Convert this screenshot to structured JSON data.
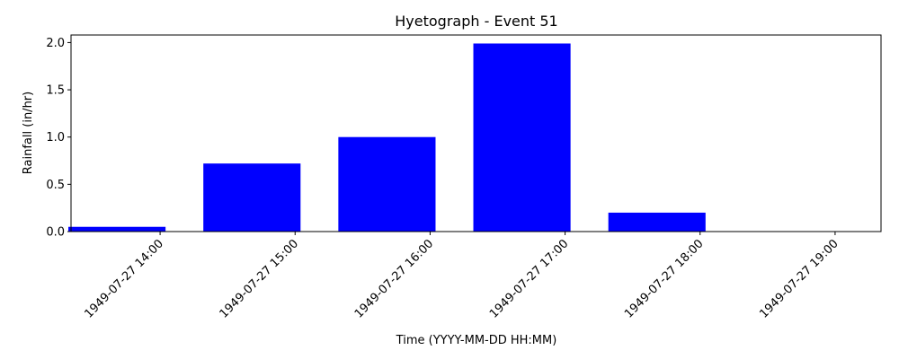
{
  "chart_data": {
    "type": "bar",
    "title": "Hyetograph - Event 51",
    "xlabel": "Time (YYYY-MM-DD HH:MM)",
    "ylabel": "Rainfall (in/hr)",
    "categories": [
      "1949-07-27 14:00",
      "1949-07-27 15:00",
      "1949-07-27 16:00",
      "1949-07-27 17:00",
      "1949-07-27 18:00",
      "1949-07-27 19:00"
    ],
    "values": [
      0.05,
      0.72,
      1.0,
      1.99,
      0.2,
      0.0
    ],
    "ylim": [
      0,
      2.08
    ],
    "yticks": [
      "0.0",
      "0.5",
      "1.0",
      "1.5",
      "2.0"
    ],
    "bar_color": "#0000ff",
    "grid": false,
    "legend": "none"
  }
}
